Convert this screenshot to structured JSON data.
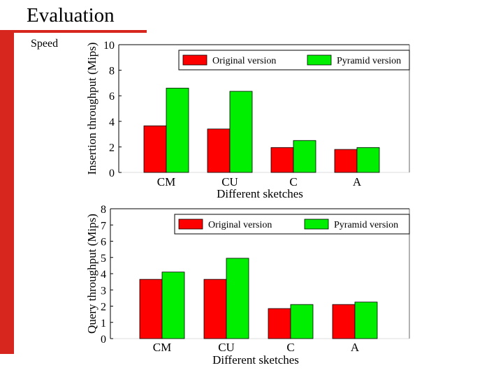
{
  "slide": {
    "title": "Evaluation",
    "subtitle": "Speed"
  },
  "colors": {
    "accent": "#d7261e",
    "original": "#ff0000",
    "pyramid": "#00ee00"
  },
  "chart_data": [
    {
      "type": "bar",
      "title": "",
      "xlabel": "Different sketches",
      "ylabel": "Insertion throughput (Mips)",
      "categories": [
        "CM",
        "CU",
        "C",
        "A"
      ],
      "yticks": [
        "0",
        "2",
        "4",
        "6",
        "8",
        "10"
      ],
      "ylim": [
        0,
        10
      ],
      "legend_position": "top",
      "series": [
        {
          "name": "Original version",
          "values": [
            3.65,
            3.4,
            1.95,
            1.8
          ]
        },
        {
          "name": "Pyramid version",
          "values": [
            6.6,
            6.35,
            2.5,
            1.95
          ]
        }
      ]
    },
    {
      "type": "bar",
      "title": "",
      "xlabel": "Different sketches",
      "ylabel": "Query throughput (Mips)",
      "categories": [
        "CM",
        "CU",
        "C",
        "A"
      ],
      "yticks": [
        "0",
        "1",
        "2",
        "3",
        "4",
        "5",
        "6",
        "7",
        "8"
      ],
      "ylim": [
        0,
        8
      ],
      "legend_position": "top",
      "series": [
        {
          "name": "Original version",
          "values": [
            3.65,
            3.65,
            1.85,
            2.1
          ]
        },
        {
          "name": "Pyramid version",
          "values": [
            4.1,
            4.95,
            2.1,
            2.25
          ]
        }
      ]
    }
  ]
}
